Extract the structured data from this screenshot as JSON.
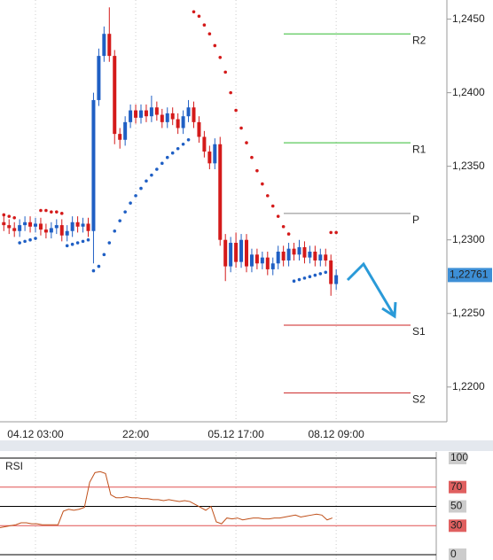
{
  "chart_data": {
    "type": "candlestick",
    "categories": [
      null,
      null,
      null,
      null,
      null,
      null,
      "04.12 03:00",
      null,
      null,
      null,
      null,
      null,
      null,
      null,
      null,
      null,
      null,
      null,
      null,
      null,
      null,
      null,
      null,
      null,
      null,
      "22:00",
      null,
      null,
      null,
      null,
      null,
      null,
      null,
      null,
      null,
      null,
      null,
      null,
      null,
      null,
      null,
      null,
      null,
      null,
      "05.12 17:00",
      null,
      null,
      null,
      null,
      null,
      null,
      null,
      null,
      null,
      null,
      null,
      null,
      null,
      null,
      null,
      null,
      null,
      null,
      "08.12 09:00"
    ],
    "open": [
      1.2312,
      1.231,
      1.2308,
      1.2306,
      1.231,
      1.2312,
      1.2309,
      1.2311,
      1.2307,
      1.2305,
      1.2308,
      1.231,
      1.2303,
      1.2306,
      1.2312,
      1.2309,
      1.2311,
      1.2306,
      1.2395,
      1.2425,
      1.244,
      1.2425,
      1.2372,
      1.2368,
      1.238,
      1.2388,
      1.2383,
      1.2388,
      1.2384,
      1.239,
      1.2385,
      1.238,
      1.2386,
      1.2382,
      1.2376,
      1.2384,
      1.239,
      1.238,
      1.237,
      1.236,
      1.2352,
      1.2365,
      1.23,
      1.2282,
      1.2298,
      1.2285,
      1.23,
      1.2282,
      1.229,
      1.2284,
      1.2288,
      1.228,
      1.2284,
      1.2292,
      1.2286,
      1.2294,
      1.229,
      1.2295,
      1.2288,
      1.2292,
      1.2286,
      1.229,
      1.2286,
      1.227
    ],
    "high": [
      1.2316,
      1.2314,
      1.2312,
      1.2314,
      1.2316,
      1.2316,
      1.2315,
      1.2315,
      1.2311,
      1.2312,
      1.2314,
      1.2314,
      1.231,
      1.2316,
      1.2316,
      1.2315,
      1.2315,
      1.24,
      1.243,
      1.2445,
      1.2458,
      1.2429,
      1.2376,
      1.2384,
      1.2392,
      1.2392,
      1.2392,
      1.2392,
      1.2398,
      1.2394,
      1.2389,
      1.239,
      1.239,
      1.2386,
      1.2388,
      1.2395,
      1.2394,
      1.2384,
      1.2374,
      1.2364,
      1.2369,
      1.237,
      1.2304,
      1.2302,
      1.2305,
      1.2304,
      1.2304,
      1.2294,
      1.2294,
      1.2292,
      1.2292,
      1.2288,
      1.2296,
      1.2296,
      1.2298,
      1.2298,
      1.23,
      1.2299,
      1.2296,
      1.2296,
      1.2294,
      1.2294,
      1.229,
      1.228
    ],
    "low": [
      1.2306,
      1.2304,
      1.2302,
      1.2302,
      1.2306,
      1.2305,
      1.2305,
      1.2303,
      1.2301,
      1.2301,
      1.2304,
      1.2299,
      1.2299,
      1.2302,
      1.2305,
      1.2305,
      1.2302,
      1.2284,
      1.2391,
      1.2421,
      1.2421,
      1.2365,
      1.2362,
      1.2364,
      1.2376,
      1.2379,
      1.2379,
      1.238,
      1.238,
      1.2381,
      1.2376,
      1.2376,
      1.2378,
      1.2372,
      1.2372,
      1.238,
      1.2376,
      1.2366,
      1.2356,
      1.2348,
      1.2348,
      1.2296,
      1.2272,
      1.2278,
      1.2281,
      1.2281,
      1.2278,
      1.2278,
      1.228,
      1.228,
      1.2276,
      1.2276,
      1.228,
      1.2282,
      1.2282,
      1.2286,
      1.2286,
      1.2284,
      1.2284,
      1.2282,
      1.2282,
      1.2282,
      1.2262,
      1.2266
    ],
    "close": [
      1.231,
      1.2308,
      1.2306,
      1.231,
      1.2312,
      1.2309,
      1.2311,
      1.2307,
      1.2305,
      1.2308,
      1.231,
      1.2303,
      1.2306,
      1.2312,
      1.2309,
      1.2311,
      1.2306,
      1.2395,
      1.2425,
      1.244,
      1.2425,
      1.2372,
      1.2368,
      1.238,
      1.2388,
      1.2383,
      1.2388,
      1.2384,
      1.239,
      1.2385,
      1.238,
      1.2386,
      1.2382,
      1.2376,
      1.2384,
      1.239,
      1.238,
      1.237,
      1.236,
      1.2352,
      1.2365,
      1.23,
      1.2282,
      1.2298,
      1.2285,
      1.23,
      1.2282,
      1.229,
      1.2284,
      1.2288,
      1.228,
      1.2284,
      1.2292,
      1.2286,
      1.2294,
      1.229,
      1.2295,
      1.2288,
      1.2292,
      1.2286,
      1.229,
      1.2286,
      1.227,
      1.2276
    ],
    "up_color": "#1f5fc4",
    "down_color": "#d41a1a",
    "sar": [
      1.2317,
      1.2316,
      1.2315,
      1.2298,
      1.2299,
      1.23,
      1.2301,
      1.232,
      1.232,
      1.2319,
      1.2319,
      1.2318,
      1.2296,
      1.2297,
      1.2298,
      1.2299,
      1.23,
      1.2279,
      1.2282,
      1.229,
      1.2298,
      1.2306,
      1.2313,
      1.2319,
      1.2325,
      1.233,
      1.2335,
      1.234,
      1.2344,
      1.2348,
      1.2352,
      1.2356,
      1.2359,
      1.2362,
      1.2365,
      1.2368,
      1.2455,
      1.2452,
      1.2446,
      1.244,
      1.2432,
      1.2424,
      1.2414,
      1.24,
      1.2388,
      1.2376,
      1.2366,
      1.2356,
      1.2347,
      1.2338,
      1.233,
      1.2323,
      1.2316,
      1.2309,
      1.2304,
      1.2272,
      1.2273,
      1.2274,
      1.2275,
      1.2276,
      1.2277,
      1.2278,
      1.2305,
      1.2305
    ],
    "ylim": [
      1.218,
      1.2463
    ],
    "yticks": [
      {
        "value": 1.22,
        "label": "1,2200"
      },
      {
        "value": 1.225,
        "label": "1,2250"
      },
      {
        "value": 1.23,
        "label": "1,2300"
      },
      {
        "value": 1.235,
        "label": "1,2350"
      },
      {
        "value": 1.24,
        "label": "1,2400"
      },
      {
        "value": 1.245,
        "label": "1,2450"
      }
    ],
    "last_price": {
      "value": 1.22761,
      "label": "1,22761"
    },
    "pivots": [
      {
        "name": "R2",
        "value": 1.244,
        "color": "#33bb33"
      },
      {
        "name": "R1",
        "value": 1.2366,
        "color": "#33bb33"
      },
      {
        "name": "P",
        "value": 1.2318,
        "color": "#888888"
      },
      {
        "name": "S1",
        "value": 1.2242,
        "color": "#cc2222"
      },
      {
        "name": "S2",
        "value": 1.2196,
        "color": "#cc2222"
      }
    ],
    "rsi": {
      "title": "RSI",
      "color": "#c0501a",
      "values": [
        28,
        29,
        30,
        31,
        33,
        33,
        32,
        32,
        31,
        31,
        31,
        31,
        45,
        47,
        46,
        47,
        49,
        75,
        85,
        86,
        84,
        62,
        59,
        59,
        60,
        59,
        59,
        58,
        58,
        57,
        57,
        56,
        57,
        56,
        55,
        56,
        55,
        52,
        49,
        46,
        50,
        34,
        32,
        38,
        37,
        38,
        36,
        37,
        38,
        38,
        37,
        37,
        38,
        38,
        39,
        40,
        41,
        39,
        40,
        41,
        42,
        41,
        36,
        38
      ],
      "ylim": [
        0,
        100
      ],
      "levels": [
        {
          "value": 100,
          "color": "#000000",
          "label_bg": "#cccccc"
        },
        {
          "value": 70,
          "color": "#e05050",
          "label_bg": "#e06060"
        },
        {
          "value": 50,
          "color": "#000000",
          "label_bg": "#cccccc"
        },
        {
          "value": 30,
          "color": "#e05050",
          "label_bg": "#e06060"
        },
        {
          "value": 0,
          "color": "#000000",
          "label_bg": "#cccccc"
        }
      ]
    }
  }
}
